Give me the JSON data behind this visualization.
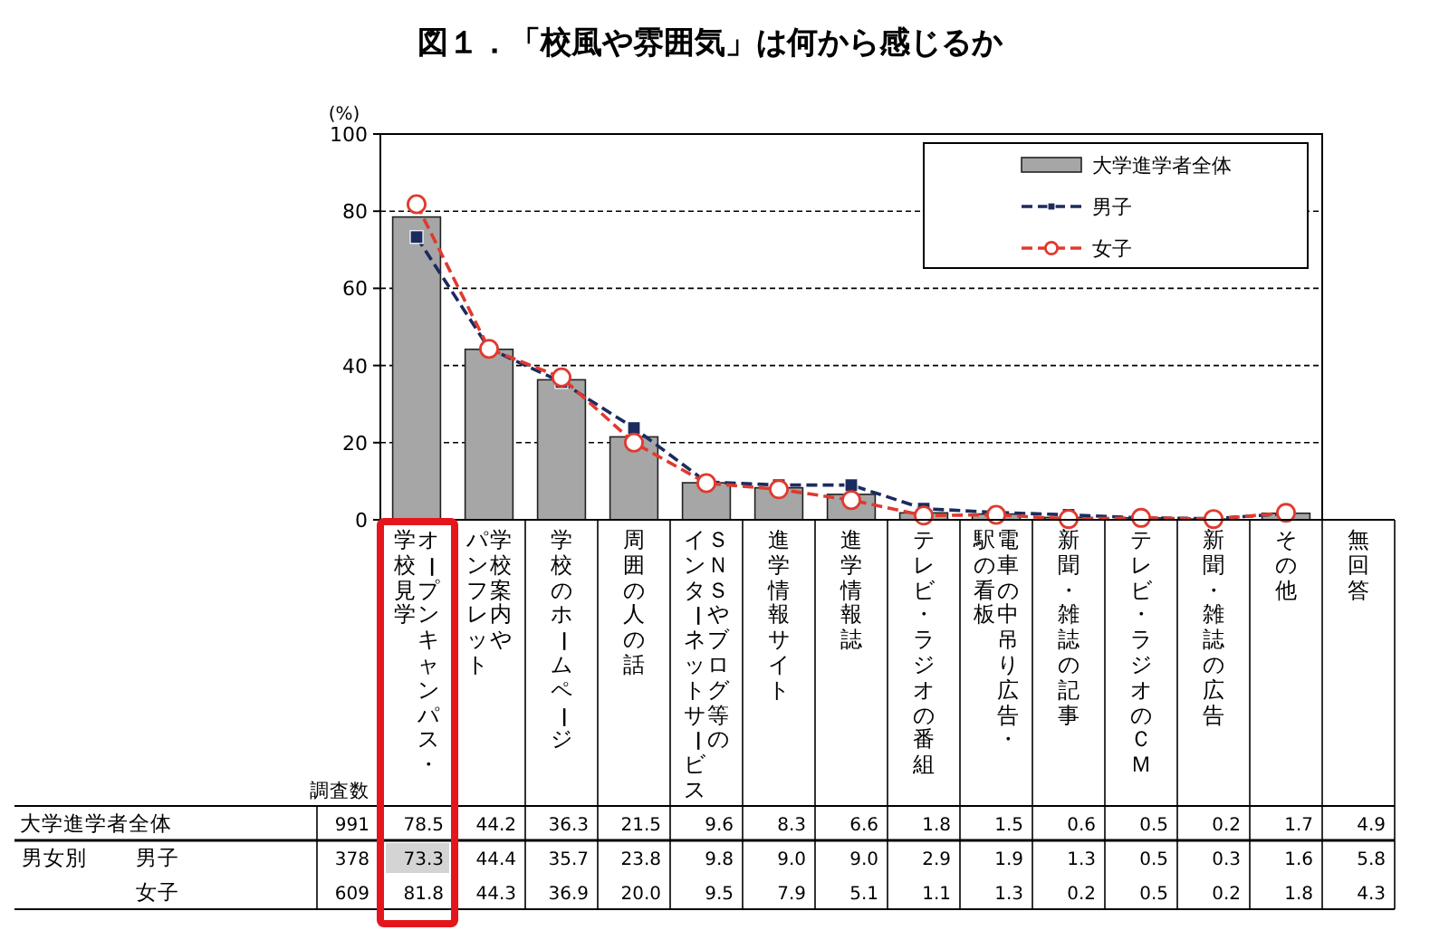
{
  "chart_data": {
    "type": "bar",
    "title": "図１．「校風や雰囲気」は何から感じるか",
    "ylabel": "(%)",
    "categories": [
      "オープンキャンパス・学校見学",
      "学校案内やパンフレット",
      "学校のホームページ",
      "周囲の人の話",
      "ＳＮＳやブログ等のインターネットサービス",
      "進学情報サイト",
      "進学情報誌",
      "テレビ・ラジオの番組",
      "電車の中吊り広告・駅の看板",
      "新聞・雑誌の記事",
      "テレビ・ラジオのＣＭ",
      "新聞・雑誌の広告",
      "その他",
      "無回答"
    ],
    "series": [
      {
        "name": "大学進学者全体",
        "color": "#a6a6a6",
        "values": [
          78.5,
          44.2,
          36.3,
          21.5,
          9.6,
          8.3,
          6.6,
          1.8,
          1.5,
          0.6,
          0.5,
          0.2,
          1.7,
          null
        ],
        "value_labels": [
          "78.5",
          "44.2",
          "36.3",
          "21.5",
          "9.6",
          "8.3",
          "6.6",
          "1.8",
          "1.5",
          "0.6",
          "0.5",
          "0.2",
          "1.7",
          "4.9"
        ]
      },
      {
        "name": "男子",
        "type": "line",
        "color": "#1c2b5e",
        "marker": "square",
        "values": [
          73.3,
          44.4,
          35.7,
          23.8,
          9.8,
          9.0,
          9.0,
          2.9,
          1.9,
          1.3,
          0.5,
          0.3,
          1.6,
          null
        ],
        "value_labels": [
          "73.3",
          "44.4",
          "35.7",
          "23.8",
          "9.8",
          "9.0",
          "9.0",
          "2.9",
          "1.9",
          "1.3",
          "0.5",
          "0.3",
          "1.6",
          "5.8"
        ]
      },
      {
        "name": "女子",
        "type": "line",
        "color": "#e03a2f",
        "marker": "circle",
        "values": [
          81.8,
          44.3,
          36.9,
          20.0,
          9.5,
          7.9,
          5.1,
          1.1,
          1.3,
          0.2,
          0.5,
          0.2,
          1.8,
          null
        ],
        "value_labels": [
          "81.8",
          "44.3",
          "36.9",
          "20.0",
          "9.5",
          "7.9",
          "5.1",
          "1.1",
          "1.3",
          "0.2",
          "0.5",
          "0.2",
          "1.8",
          "4.3"
        ]
      }
    ],
    "ylim": [
      0,
      100
    ],
    "yticks": [
      0,
      20,
      40,
      60,
      80,
      100
    ],
    "grid": "y",
    "legend": "top right",
    "line_style": "dashed",
    "annotations": [
      "調査数",
      "991",
      "378",
      "609",
      "男女別"
    ]
  }
}
